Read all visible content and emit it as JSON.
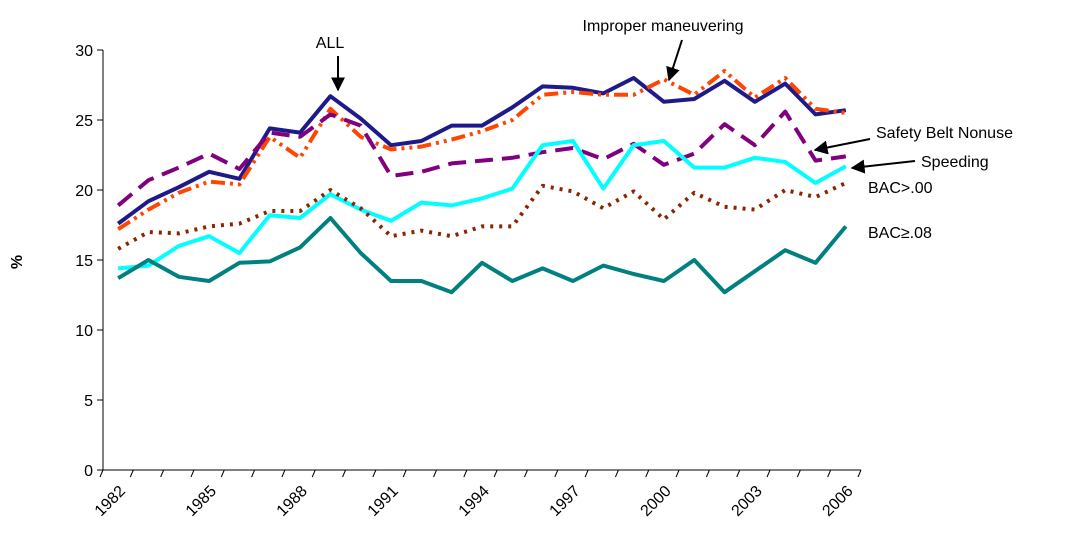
{
  "chart_data": {
    "type": "line",
    "y_label": "%",
    "categories": [
      "1982",
      null,
      null,
      "1985",
      null,
      null,
      "1988",
      null,
      null,
      "1991",
      null,
      null,
      "1994",
      null,
      null,
      "1997",
      null,
      null,
      "2000",
      null,
      null,
      "2003",
      null,
      null,
      "2006"
    ],
    "ylim": [
      0,
      30
    ],
    "yticks": [
      0,
      5,
      10,
      15,
      20,
      25,
      30
    ],
    "grid": false,
    "series": [
      {
        "name": "ALL",
        "color": "#1f1a8a",
        "values": [
          17.6,
          19.2,
          20.2,
          21.3,
          20.8,
          24.4,
          24.1,
          26.7,
          25.1,
          23.2,
          23.5,
          24.6,
          24.6,
          25.9,
          27.4,
          27.3,
          26.9,
          28.0,
          26.3,
          26.5,
          27.8,
          26.3,
          27.6,
          25.4,
          25.7
        ]
      },
      {
        "name": "Improper maneuvering",
        "color": "#ff4500",
        "values": [
          17.2,
          18.6,
          19.8,
          20.6,
          20.4,
          23.8,
          22.3,
          25.8,
          23.8,
          22.9,
          23.1,
          23.6,
          24.2,
          25.0,
          26.8,
          27.0,
          26.8,
          26.8,
          27.9,
          26.8,
          28.5,
          26.6,
          28.0,
          25.8,
          25.5
        ]
      },
      {
        "name": "Safety Belt Nonuse",
        "color": "#800080",
        "values": [
          18.9,
          20.7,
          21.6,
          22.6,
          21.5,
          24.1,
          23.8,
          25.4,
          24.6,
          21.0,
          21.3,
          21.9,
          22.1,
          22.3,
          22.7,
          23.0,
          22.2,
          23.3,
          21.8,
          22.6,
          24.7,
          23.2,
          25.6,
          22.1,
          22.4
        ]
      },
      {
        "name": "Speeding",
        "color": "#00ffff",
        "values": [
          14.4,
          14.6,
          16.0,
          16.7,
          15.5,
          18.2,
          18.0,
          19.7,
          18.6,
          17.8,
          19.1,
          18.9,
          19.4,
          20.1,
          23.2,
          23.5,
          20.1,
          23.2,
          23.5,
          21.6,
          21.6,
          22.3,
          22.0,
          20.5,
          21.7
        ]
      },
      {
        "name": "BAC>.00",
        "color": "#8b2500",
        "values": [
          15.8,
          17.0,
          16.9,
          17.4,
          17.6,
          18.5,
          18.5,
          20.0,
          18.7,
          16.7,
          17.1,
          16.7,
          17.4,
          17.4,
          20.3,
          19.9,
          18.7,
          19.9,
          17.9,
          19.8,
          18.8,
          18.6,
          20.0,
          19.5,
          20.5
        ]
      },
      {
        "name": "BAC≥.08",
        "color": "#008080",
        "values": [
          13.7,
          15.0,
          13.8,
          13.5,
          14.8,
          14.9,
          15.9,
          18.0,
          15.5,
          13.5,
          13.5,
          12.7,
          14.8,
          13.5,
          14.4,
          13.5,
          14.6,
          14.0,
          13.5,
          15.0,
          12.7,
          14.2,
          15.7,
          14.8,
          17.4
        ]
      }
    ]
  }
}
